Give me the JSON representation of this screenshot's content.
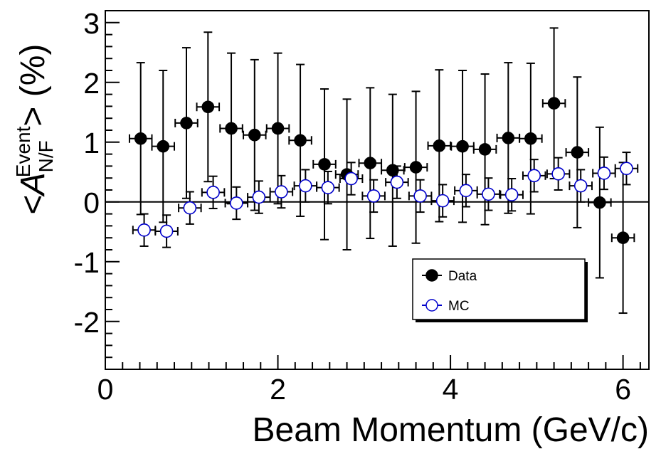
{
  "chart_data": {
    "type": "scatter",
    "xlabel": "Beam Momentum (GeV/c)",
    "ylabel": {
      "main": "<A",
      "superscript": "Event",
      "subscript": "N/F",
      "suffix": "> (%)"
    },
    "xlim": [
      0,
      6.3
    ],
    "ylim": [
      -2.8,
      3.2
    ],
    "x_ticks": [
      0,
      2,
      4,
      6
    ],
    "y_ticks": [
      -2,
      -1,
      0,
      1,
      2,
      3
    ],
    "x_tick_labels": [
      "0",
      "2",
      "4",
      "6"
    ],
    "y_tick_labels": [
      "-2",
      "-1",
      "0",
      "1",
      "2",
      "3"
    ],
    "zero_line": true,
    "grid": false,
    "legend_position": "bottom-right",
    "series": [
      {
        "name": "Data",
        "marker": "filled-circle",
        "color": "#000000",
        "points": [
          {
            "x": 0.41,
            "y": 1.06,
            "xerr": 0.13,
            "yerr_hi": 1.27,
            "yerr_lo": 1.27
          },
          {
            "x": 0.67,
            "y": 0.93,
            "xerr": 0.13,
            "yerr_hi": 1.27,
            "yerr_lo": 1.27
          },
          {
            "x": 0.94,
            "y": 1.32,
            "xerr": 0.13,
            "yerr_hi": 1.26,
            "yerr_lo": 1.26
          },
          {
            "x": 1.19,
            "y": 1.59,
            "xerr": 0.13,
            "yerr_hi": 1.25,
            "yerr_lo": 1.25
          },
          {
            "x": 1.46,
            "y": 1.23,
            "xerr": 0.13,
            "yerr_hi": 1.26,
            "yerr_lo": 1.26
          },
          {
            "x": 1.73,
            "y": 1.12,
            "xerr": 0.13,
            "yerr_hi": 1.26,
            "yerr_lo": 1.26
          },
          {
            "x": 2.0,
            "y": 1.23,
            "xerr": 0.13,
            "yerr_hi": 1.26,
            "yerr_lo": 1.26
          },
          {
            "x": 2.26,
            "y": 1.03,
            "xerr": 0.13,
            "yerr_hi": 1.27,
            "yerr_lo": 1.27
          },
          {
            "x": 2.54,
            "y": 0.63,
            "xerr": 0.13,
            "yerr_hi": 1.26,
            "yerr_lo": 1.26
          },
          {
            "x": 2.8,
            "y": 0.46,
            "xerr": 0.13,
            "yerr_hi": 1.26,
            "yerr_lo": 1.26
          },
          {
            "x": 3.07,
            "y": 0.65,
            "xerr": 0.13,
            "yerr_hi": 1.26,
            "yerr_lo": 1.26
          },
          {
            "x": 3.33,
            "y": 0.53,
            "xerr": 0.13,
            "yerr_hi": 1.27,
            "yerr_lo": 1.27
          },
          {
            "x": 3.6,
            "y": 0.58,
            "xerr": 0.13,
            "yerr_hi": 1.27,
            "yerr_lo": 1.27
          },
          {
            "x": 3.87,
            "y": 0.94,
            "xerr": 0.13,
            "yerr_hi": 1.27,
            "yerr_lo": 1.27
          },
          {
            "x": 4.14,
            "y": 0.93,
            "xerr": 0.13,
            "yerr_hi": 1.27,
            "yerr_lo": 1.27
          },
          {
            "x": 4.4,
            "y": 0.88,
            "xerr": 0.13,
            "yerr_hi": 1.26,
            "yerr_lo": 1.26
          },
          {
            "x": 4.67,
            "y": 1.07,
            "xerr": 0.13,
            "yerr_hi": 1.26,
            "yerr_lo": 1.26
          },
          {
            "x": 4.93,
            "y": 1.06,
            "xerr": 0.13,
            "yerr_hi": 1.26,
            "yerr_lo": 1.26
          },
          {
            "x": 5.2,
            "y": 1.65,
            "xerr": 0.13,
            "yerr_hi": 1.26,
            "yerr_lo": 1.26
          },
          {
            "x": 5.47,
            "y": 0.83,
            "xerr": 0.13,
            "yerr_hi": 1.26,
            "yerr_lo": 1.26
          },
          {
            "x": 5.73,
            "y": -0.01,
            "xerr": 0.13,
            "yerr_hi": 1.26,
            "yerr_lo": 1.26
          },
          {
            "x": 6.0,
            "y": -0.6,
            "xerr": 0.13,
            "yerr_hi": 1.26,
            "yerr_lo": 1.26
          }
        ]
      },
      {
        "name": "MC",
        "marker": "open-circle",
        "color": "#0000cc",
        "points": [
          {
            "x": 0.45,
            "y": -0.47,
            "xerr": 0.13,
            "yerr_hi": 0.27,
            "yerr_lo": 0.27
          },
          {
            "x": 0.71,
            "y": -0.49,
            "xerr": 0.13,
            "yerr_hi": 0.27,
            "yerr_lo": 0.27
          },
          {
            "x": 0.98,
            "y": -0.1,
            "xerr": 0.13,
            "yerr_hi": 0.27,
            "yerr_lo": 0.27
          },
          {
            "x": 1.25,
            "y": 0.16,
            "xerr": 0.13,
            "yerr_hi": 0.27,
            "yerr_lo": 0.27
          },
          {
            "x": 1.52,
            "y": -0.02,
            "xerr": 0.13,
            "yerr_hi": 0.27,
            "yerr_lo": 0.27
          },
          {
            "x": 1.78,
            "y": 0.08,
            "xerr": 0.13,
            "yerr_hi": 0.27,
            "yerr_lo": 0.27
          },
          {
            "x": 2.04,
            "y": 0.17,
            "xerr": 0.13,
            "yerr_hi": 0.27,
            "yerr_lo": 0.27
          },
          {
            "x": 2.32,
            "y": 0.27,
            "xerr": 0.13,
            "yerr_hi": 0.27,
            "yerr_lo": 0.27
          },
          {
            "x": 2.58,
            "y": 0.24,
            "xerr": 0.13,
            "yerr_hi": 0.27,
            "yerr_lo": 0.27
          },
          {
            "x": 2.85,
            "y": 0.39,
            "xerr": 0.13,
            "yerr_hi": 0.27,
            "yerr_lo": 0.27
          },
          {
            "x": 3.11,
            "y": 0.1,
            "xerr": 0.13,
            "yerr_hi": 0.27,
            "yerr_lo": 0.27
          },
          {
            "x": 3.38,
            "y": 0.33,
            "xerr": 0.13,
            "yerr_hi": 0.27,
            "yerr_lo": 0.27
          },
          {
            "x": 3.65,
            "y": 0.1,
            "xerr": 0.13,
            "yerr_hi": 0.27,
            "yerr_lo": 0.27
          },
          {
            "x": 3.91,
            "y": 0.02,
            "xerr": 0.13,
            "yerr_hi": 0.27,
            "yerr_lo": 0.27
          },
          {
            "x": 4.18,
            "y": 0.19,
            "xerr": 0.13,
            "yerr_hi": 0.27,
            "yerr_lo": 0.27
          },
          {
            "x": 4.44,
            "y": 0.13,
            "xerr": 0.13,
            "yerr_hi": 0.27,
            "yerr_lo": 0.27
          },
          {
            "x": 4.71,
            "y": 0.12,
            "xerr": 0.13,
            "yerr_hi": 0.27,
            "yerr_lo": 0.27
          },
          {
            "x": 4.97,
            "y": 0.44,
            "xerr": 0.13,
            "yerr_hi": 0.27,
            "yerr_lo": 0.27
          },
          {
            "x": 5.25,
            "y": 0.47,
            "xerr": 0.13,
            "yerr_hi": 0.27,
            "yerr_lo": 0.27
          },
          {
            "x": 5.51,
            "y": 0.27,
            "xerr": 0.13,
            "yerr_hi": 0.27,
            "yerr_lo": 0.27
          },
          {
            "x": 5.78,
            "y": 0.48,
            "xerr": 0.13,
            "yerr_hi": 0.27,
            "yerr_lo": 0.27
          },
          {
            "x": 6.04,
            "y": 0.56,
            "xerr": 0.13,
            "yerr_hi": 0.27,
            "yerr_lo": 0.27
          }
        ]
      }
    ]
  }
}
